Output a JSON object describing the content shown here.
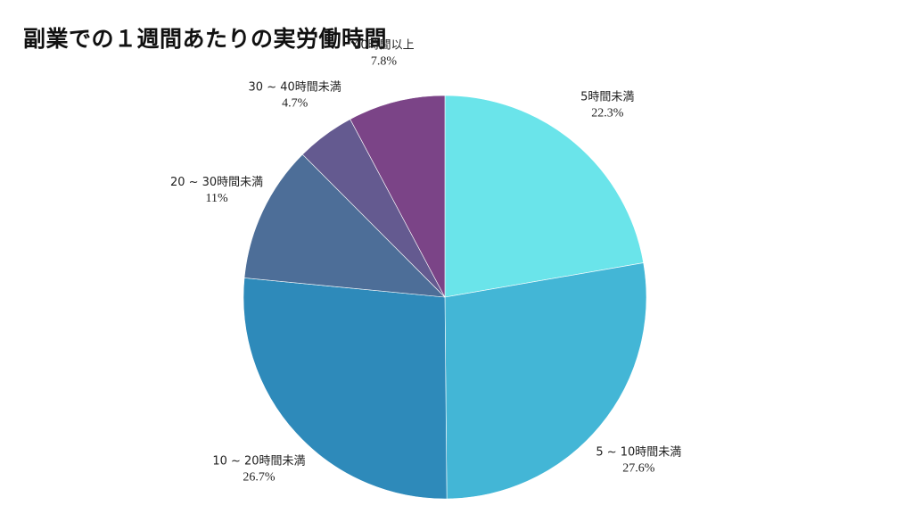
{
  "chart_data": {
    "type": "pie",
    "title": "副業での１週間あたりの実労働時間",
    "slices": [
      {
        "label": "5時間未満",
        "value": 22.3,
        "value_label": "22.3%",
        "color": "#6ae4ea"
      },
      {
        "label": "5 ~ 10時間未満",
        "value": 27.6,
        "value_label": "27.6%",
        "color": "#43b6d6"
      },
      {
        "label": "10 ~ 20時間未満",
        "value": 26.7,
        "value_label": "26.7%",
        "color": "#2e8aba"
      },
      {
        "label": "20 ~ 30時間未満",
        "value": 11.0,
        "value_label": "11%",
        "color": "#4d6e98"
      },
      {
        "label": "30 ~ 40時間未満",
        "value": 4.7,
        "value_label": "4.7%",
        "color": "#645a90"
      },
      {
        "label": "40時間以上",
        "value": 7.8,
        "value_label": "7.8%",
        "color": "#7b4487"
      }
    ],
    "start_angle": "12 o'clock",
    "direction": "clockwise",
    "legend": "none",
    "labels_placement": "outside"
  }
}
